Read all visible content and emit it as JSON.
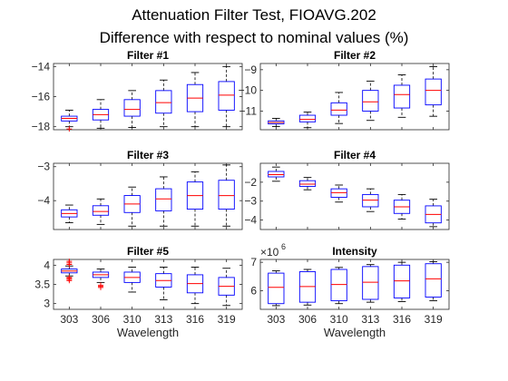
{
  "figure": {
    "title_line1": "Attenuation Filter Test, FIOAVG.202",
    "title_line2": "Difference with respect to nominal values (%)"
  },
  "colors": {
    "box": "#0000ff",
    "median": "#ff0000",
    "whisker": "#000000",
    "outlier": "#ff0000",
    "axes": "#262626"
  },
  "chart_data": [
    {
      "type": "box",
      "title": "Filter #1",
      "categories": [
        "303",
        "306",
        "310",
        "313",
        "316",
        "319"
      ],
      "ylim": [
        -18.2,
        -13.8
      ],
      "yticks": [
        -18,
        -16,
        -14
      ],
      "xlabel": "",
      "boxes": [
        {
          "whislo": -18.0,
          "q1": -17.62,
          "med": -17.45,
          "q3": -17.3,
          "whishi": -16.9,
          "outliers": [
            -18.15
          ]
        },
        {
          "whislo": -18.1,
          "q1": -17.55,
          "med": -17.2,
          "q3": -16.85,
          "whishi": -16.2,
          "outliers": []
        },
        {
          "whislo": -18.05,
          "q1": -17.3,
          "med": -16.85,
          "q3": -16.2,
          "whishi": -15.6,
          "outliers": []
        },
        {
          "whislo": -18.0,
          "q1": -17.1,
          "med": -16.4,
          "q3": -15.6,
          "whishi": -14.9,
          "outliers": []
        },
        {
          "whislo": -18.0,
          "q1": -17.0,
          "med": -16.1,
          "q3": -15.2,
          "whishi": -14.4,
          "outliers": []
        },
        {
          "whislo": -18.0,
          "q1": -16.9,
          "med": -15.9,
          "q3": -15.0,
          "whishi": -14.0,
          "outliers": []
        }
      ]
    },
    {
      "type": "box",
      "title": "Filter #2",
      "categories": [
        "303",
        "306",
        "310",
        "313",
        "316",
        "319"
      ],
      "ylim": [
        -11.9,
        -8.7
      ],
      "yticks": [
        -11,
        -10,
        -9
      ],
      "xlabel": "",
      "boxes": [
        {
          "whislo": -11.75,
          "q1": -11.62,
          "med": -11.55,
          "q3": -11.47,
          "whishi": -11.35,
          "outliers": []
        },
        {
          "whislo": -11.8,
          "q1": -11.52,
          "med": -11.4,
          "q3": -11.2,
          "whishi": -11.05,
          "outliers": []
        },
        {
          "whislo": -11.6,
          "q1": -11.2,
          "med": -10.95,
          "q3": -10.6,
          "whishi": -10.1,
          "outliers": []
        },
        {
          "whislo": -11.45,
          "q1": -11.0,
          "med": -10.55,
          "q3": -10.0,
          "whishi": -9.55,
          "outliers": []
        },
        {
          "whislo": -11.3,
          "q1": -10.85,
          "med": -10.2,
          "q3": -9.75,
          "whishi": -9.25,
          "outliers": []
        },
        {
          "whislo": -11.25,
          "q1": -10.7,
          "med": -10.0,
          "q3": -9.45,
          "whishi": -8.85,
          "outliers": []
        }
      ]
    },
    {
      "type": "box",
      "title": "Filter #3",
      "categories": [
        "303",
        "306",
        "310",
        "313",
        "316",
        "319"
      ],
      "ylim": [
        -4.85,
        -2.9
      ],
      "yticks": [
        -4,
        -3
      ],
      "xlabel": "",
      "boxes": [
        {
          "whislo": -4.65,
          "q1": -4.48,
          "med": -4.38,
          "q3": -4.27,
          "whishi": -4.13,
          "outliers": []
        },
        {
          "whislo": -4.7,
          "q1": -4.43,
          "med": -4.32,
          "q3": -4.15,
          "whishi": -3.95,
          "outliers": []
        },
        {
          "whislo": -4.75,
          "q1": -4.35,
          "med": -4.1,
          "q3": -3.85,
          "whishi": -3.6,
          "outliers": []
        },
        {
          "whislo": -4.75,
          "q1": -4.3,
          "med": -3.95,
          "q3": -3.65,
          "whishi": -3.3,
          "outliers": []
        },
        {
          "whislo": -4.75,
          "q1": -4.25,
          "med": -3.85,
          "q3": -3.45,
          "whishi": -3.15,
          "outliers": []
        },
        {
          "whislo": -4.75,
          "q1": -4.25,
          "med": -3.85,
          "q3": -3.4,
          "whishi": -2.95,
          "outliers": []
        }
      ]
    },
    {
      "type": "box",
      "title": "Filter #4",
      "categories": [
        "303",
        "306",
        "310",
        "313",
        "316",
        "319"
      ],
      "ylim": [
        -4.5,
        -1.0
      ],
      "yticks": [
        -4,
        -3,
        -2
      ],
      "xlabel": "",
      "boxes": [
        {
          "whislo": -1.95,
          "q1": -1.72,
          "med": -1.6,
          "q3": -1.43,
          "whishi": -1.2,
          "outliers": []
        },
        {
          "whislo": -2.4,
          "q1": -2.22,
          "med": -2.1,
          "q3": -1.92,
          "whishi": -1.75,
          "outliers": []
        },
        {
          "whislo": -3.05,
          "q1": -2.8,
          "med": -2.55,
          "q3": -2.35,
          "whishi": -2.15,
          "outliers": []
        },
        {
          "whislo": -3.55,
          "q1": -3.3,
          "med": -2.95,
          "q3": -2.65,
          "whishi": -2.35,
          "outliers": []
        },
        {
          "whislo": -3.95,
          "q1": -3.65,
          "med": -3.3,
          "q3": -2.95,
          "whishi": -2.65,
          "outliers": []
        },
        {
          "whislo": -4.35,
          "q1": -4.15,
          "med": -3.7,
          "q3": -3.25,
          "whishi": -2.9,
          "outliers": []
        }
      ]
    },
    {
      "type": "box",
      "title": "Filter #5",
      "categories": [
        "303",
        "306",
        "310",
        "313",
        "316",
        "319"
      ],
      "ylim": [
        2.85,
        4.15
      ],
      "yticks": [
        3,
        3.5,
        4
      ],
      "yticklabels": [
        "3",
        "3.5",
        "4"
      ],
      "xlabel": "Wavelength",
      "boxes": [
        {
          "whislo": 3.72,
          "q1": 3.8,
          "med": 3.85,
          "q3": 3.9,
          "whishi": 3.98,
          "outliers": [
            3.6,
            3.63,
            3.66,
            3.68,
            4.02,
            4.06,
            4.1
          ]
        },
        {
          "whislo": 3.55,
          "q1": 3.68,
          "med": 3.75,
          "q3": 3.82,
          "whishi": 3.9,
          "outliers": [
            3.42,
            3.45,
            3.48
          ]
        },
        {
          "whislo": 3.3,
          "q1": 3.55,
          "med": 3.68,
          "q3": 3.82,
          "whishi": 3.95,
          "outliers": []
        },
        {
          "whislo": 3.1,
          "q1": 3.43,
          "med": 3.6,
          "q3": 3.78,
          "whishi": 3.95,
          "outliers": []
        },
        {
          "whislo": 3.0,
          "q1": 3.28,
          "med": 3.52,
          "q3": 3.75,
          "whishi": 3.95,
          "outliers": []
        },
        {
          "whislo": 2.95,
          "q1": 3.22,
          "med": 3.45,
          "q3": 3.68,
          "whishi": 3.92,
          "outliers": []
        }
      ]
    },
    {
      "type": "box",
      "title": "Intensity",
      "categories": [
        "303",
        "306",
        "310",
        "313",
        "316",
        "319"
      ],
      "ylim": [
        5.35,
        7.1
      ],
      "yticks": [
        6,
        7
      ],
      "exponent_label": "×10",
      "exponent_power": "6",
      "xlabel": "Wavelength",
      "boxes": [
        {
          "whislo": 5.48,
          "q1": 5.55,
          "med": 6.12,
          "q3": 6.62,
          "whishi": 6.7,
          "outliers": []
        },
        {
          "whislo": 5.5,
          "q1": 5.6,
          "med": 6.15,
          "q3": 6.67,
          "whishi": 6.75,
          "outliers": []
        },
        {
          "whislo": 5.55,
          "q1": 5.65,
          "med": 6.22,
          "q3": 6.75,
          "whishi": 6.82,
          "outliers": []
        },
        {
          "whislo": 5.6,
          "q1": 5.7,
          "med": 6.3,
          "q3": 6.85,
          "whishi": 6.92,
          "outliers": []
        },
        {
          "whislo": 5.62,
          "q1": 5.75,
          "med": 6.35,
          "q3": 6.9,
          "whishi": 7.0,
          "outliers": []
        },
        {
          "whislo": 5.65,
          "q1": 5.78,
          "med": 6.42,
          "q3": 6.95,
          "whishi": 7.02,
          "outliers": []
        }
      ]
    }
  ]
}
